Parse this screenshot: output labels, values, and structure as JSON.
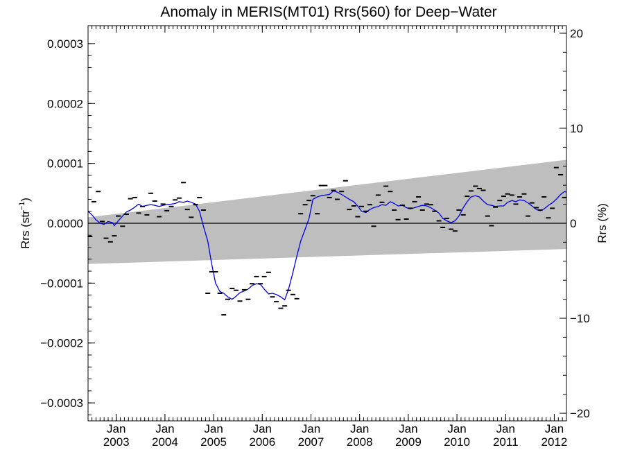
{
  "chart_data": {
    "type": "scatter",
    "title": "Anomaly in MERIS(MT01) Rrs(560) for Deep−Water",
    "ylabel_left_main": "Rrs (str",
    "ylabel_left_sup": "−1",
    "ylabel_left_close": ")",
    "ylabel_right": "Rrs (%)",
    "xlim": [
      2002.42,
      2012.25
    ],
    "ylim": [
      -0.00033,
      0.00033
    ],
    "ylim_right": [
      -20.8,
      20.8
    ],
    "grid": false,
    "left_tick_values": [
      0.0003,
      0.0002,
      0.0001,
      0.0,
      -0.0001,
      -0.0002,
      -0.0003
    ],
    "left_tick_labels": [
      "0.0003",
      "0.0002",
      "0.0001",
      "0.0000",
      "−0.0001",
      "−0.0002",
      "−0.0003"
    ],
    "right_tick_values": [
      20,
      10,
      0,
      -10,
      -20
    ],
    "right_tick_labels": [
      "20",
      "10",
      "0",
      "−10",
      "−20"
    ],
    "x_ticks": [
      {
        "x": 2003.0,
        "month": "Jan",
        "year": "2003"
      },
      {
        "x": 2004.0,
        "month": "Jan",
        "year": "2004"
      },
      {
        "x": 2005.0,
        "month": "Jan",
        "year": "2005"
      },
      {
        "x": 2006.0,
        "month": "Jan",
        "year": "2006"
      },
      {
        "x": 2007.0,
        "month": "Jan",
        "year": "2007"
      },
      {
        "x": 2008.0,
        "month": "Jan",
        "year": "2008"
      },
      {
        "x": 2009.0,
        "month": "Jan",
        "year": "2009"
      },
      {
        "x": 2010.0,
        "month": "Jan",
        "year": "2010"
      },
      {
        "x": 2011.0,
        "month": "Jan",
        "year": "2011"
      },
      {
        "x": 2012.0,
        "month": "Jan",
        "year": "2012"
      }
    ],
    "reference_line": 0.0,
    "uncertainty_band": {
      "x": [
        2002.42,
        2012.25
      ],
      "upper": [
        1e-05,
        0.000106
      ],
      "lower": [
        -6.8e-05,
        -4.3e-05
      ],
      "color": "#bebebe"
    },
    "series": [
      {
        "kind": "monthly-anomaly-markers",
        "color": "#000000",
        "points": [
          [
            2002.46,
            -2.2e-05
          ],
          [
            2002.54,
            3.6e-05
          ],
          [
            2002.63,
            5.3e-05
          ],
          [
            2002.71,
            3e-06
          ],
          [
            2002.79,
            -2.5e-05
          ],
          [
            2002.88,
            -3.1e-05
          ],
          [
            2002.96,
            -2.1e-05
          ],
          [
            2003.04,
            1.2e-05
          ],
          [
            2003.13,
            -5e-06
          ],
          [
            2003.21,
            1.5e-05
          ],
          [
            2003.29,
            4.1e-05
          ],
          [
            2003.38,
            4.3e-05
          ],
          [
            2003.46,
            1.7e-05
          ],
          [
            2003.54,
            2.8e-05
          ],
          [
            2003.63,
            1.4e-05
          ],
          [
            2003.71,
            5e-05
          ],
          [
            2003.79,
            3.7e-05
          ],
          [
            2003.88,
            1.1e-05
          ],
          [
            2003.96,
            3.2e-05
          ],
          [
            2004.04,
            2.1e-05
          ],
          [
            2004.13,
            2.8e-05
          ],
          [
            2004.21,
            3.9e-05
          ],
          [
            2004.29,
            4.2e-05
          ],
          [
            2004.38,
            6.8e-05
          ],
          [
            2004.46,
            2.3e-05
          ],
          [
            2004.54,
            1e-05
          ],
          [
            2004.63,
            3.1e-05
          ],
          [
            2004.71,
            4.3e-05
          ],
          [
            2004.79,
            2.2e-05
          ],
          [
            2004.88,
            -0.000117
          ],
          [
            2004.96,
            -8.1e-05
          ],
          [
            2005.04,
            -8.1e-05
          ],
          [
            2005.13,
            -0.000117
          ],
          [
            2005.21,
            -0.000153
          ],
          [
            2005.29,
            -0.000127
          ],
          [
            2005.38,
            -0.000109
          ],
          [
            2005.46,
            -0.000112
          ],
          [
            2005.54,
            -0.00013
          ],
          [
            2005.63,
            -0.000111
          ],
          [
            2005.71,
            -0.000127
          ],
          [
            2005.79,
            -0.000101
          ],
          [
            2005.88,
            -8.9e-05
          ],
          [
            2005.96,
            -0.000101
          ],
          [
            2006.04,
            -8.9e-05
          ],
          [
            2006.13,
            -8.2e-05
          ],
          [
            2006.21,
            -0.000123
          ],
          [
            2006.29,
            -0.000131
          ],
          [
            2006.38,
            -0.000142
          ],
          [
            2006.46,
            -0.000138
          ],
          [
            2006.54,
            -0.000112
          ],
          [
            2006.63,
            -0.000119
          ],
          [
            2006.71,
            -0.000126
          ],
          [
            2006.79,
            1.6e-05
          ],
          [
            2006.88,
            3.1e-05
          ],
          [
            2006.96,
            3.8e-05
          ],
          [
            2007.04,
            4.6e-05
          ],
          [
            2007.13,
            1.6e-05
          ],
          [
            2007.21,
            6.3e-05
          ],
          [
            2007.29,
            6.3e-05
          ],
          [
            2007.38,
            4.3e-05
          ],
          [
            2007.46,
            5.5e-05
          ],
          [
            2007.54,
            4e-05
          ],
          [
            2007.63,
            5.3e-05
          ],
          [
            2007.71,
            7.1e-05
          ],
          [
            2007.79,
            2.3e-05
          ],
          [
            2007.88,
            2.9e-05
          ],
          [
            2007.96,
            1.1e-05
          ],
          [
            2008.04,
            2.8e-05
          ],
          [
            2008.13,
            2e-05
          ],
          [
            2008.21,
            3.1e-05
          ],
          [
            2008.29,
            -5e-06
          ],
          [
            2008.38,
            4.7e-05
          ],
          [
            2008.46,
            3.5e-05
          ],
          [
            2008.54,
            6.2e-05
          ],
          [
            2008.63,
            5.3e-05
          ],
          [
            2008.71,
            2.2e-05
          ],
          [
            2008.79,
            6e-06
          ],
          [
            2008.88,
            3e-05
          ],
          [
            2008.96,
            7e-06
          ],
          [
            2009.04,
            2.5e-05
          ],
          [
            2009.13,
            3.6e-05
          ],
          [
            2009.21,
            4.4e-05
          ],
          [
            2009.29,
            2.2e-05
          ],
          [
            2009.38,
            3.2e-05
          ],
          [
            2009.46,
            3.1e-05
          ],
          [
            2009.54,
            2e-05
          ],
          [
            2009.63,
            4e-06
          ],
          [
            2009.71,
            -7e-06
          ],
          [
            2009.79,
            8e-06
          ],
          [
            2009.88,
            -1e-05
          ],
          [
            2009.96,
            -1.3e-05
          ],
          [
            2010.04,
            2.2e-05
          ],
          [
            2010.13,
            1.4e-05
          ],
          [
            2010.21,
            4.5e-05
          ],
          [
            2010.29,
            5.4e-05
          ],
          [
            2010.38,
            6.2e-05
          ],
          [
            2010.46,
            5.8e-05
          ],
          [
            2010.54,
            5.5e-05
          ],
          [
            2010.63,
            1.2e-05
          ],
          [
            2010.71,
            -4e-06
          ],
          [
            2010.79,
            2.7e-05
          ],
          [
            2010.88,
            3.8e-05
          ],
          [
            2010.96,
            4.5e-05
          ],
          [
            2011.04,
            4.9e-05
          ],
          [
            2011.13,
            4.7e-05
          ],
          [
            2011.21,
            3.2e-05
          ],
          [
            2011.29,
            4.4e-05
          ],
          [
            2011.38,
            4.9e-05
          ],
          [
            2011.46,
            1.2e-05
          ],
          [
            2011.54,
            3.4e-05
          ],
          [
            2011.63,
            2.6e-05
          ],
          [
            2011.71,
            2.2e-05
          ],
          [
            2011.79,
            4.4e-05
          ],
          [
            2011.88,
            9e-06
          ],
          [
            2011.96,
            2.5e-05
          ],
          [
            2012.04,
            9.3e-05
          ],
          [
            2012.13,
            8.1e-05
          ],
          [
            2012.21,
            4.3e-05
          ]
        ]
      },
      {
        "kind": "smoothed-anomaly",
        "color": "#0000e6",
        "points": [
          [
            2002.42,
            2e-05
          ],
          [
            2002.5,
            1.4e-05
          ],
          [
            2002.58,
            6e-06
          ],
          [
            2002.67,
            0.0
          ],
          [
            2002.75,
            -2e-06
          ],
          [
            2002.83,
            3e-06
          ],
          [
            2002.92,
            1e-06
          ],
          [
            2002.96,
            -4e-06
          ],
          [
            2003.04,
            4e-06
          ],
          [
            2003.13,
            1.2e-05
          ],
          [
            2003.21,
            1.9e-05
          ],
          [
            2003.29,
            2.2e-05
          ],
          [
            2003.38,
            2.7e-05
          ],
          [
            2003.46,
            3.2e-05
          ],
          [
            2003.54,
            2.8e-05
          ],
          [
            2003.63,
            3e-05
          ],
          [
            2003.71,
            3.1e-05
          ],
          [
            2003.79,
            3e-05
          ],
          [
            2003.88,
            2.8e-05
          ],
          [
            2003.96,
            3e-05
          ],
          [
            2004.04,
            3.1e-05
          ],
          [
            2004.13,
            3.2e-05
          ],
          [
            2004.21,
            3.3e-05
          ],
          [
            2004.29,
            3.6e-05
          ],
          [
            2004.38,
            3.5e-05
          ],
          [
            2004.46,
            3.7e-05
          ],
          [
            2004.54,
            3.5e-05
          ],
          [
            2004.63,
            3.2e-05
          ],
          [
            2004.71,
            2e-05
          ],
          [
            2004.79,
            -5e-06
          ],
          [
            2004.88,
            -3e-05
          ],
          [
            2004.96,
            -6.8e-05
          ],
          [
            2005.04,
            -0.0001
          ],
          [
            2005.13,
            -0.000114
          ],
          [
            2005.21,
            -0.000117
          ],
          [
            2005.29,
            -0.000123
          ],
          [
            2005.38,
            -0.000127
          ],
          [
            2005.46,
            -0.000122
          ],
          [
            2005.54,
            -0.000116
          ],
          [
            2005.63,
            -0.000113
          ],
          [
            2005.71,
            -0.00011
          ],
          [
            2005.79,
            -0.000104
          ],
          [
            2005.88,
            -0.000101
          ],
          [
            2005.96,
            -0.000102
          ],
          [
            2006.04,
            -0.00011
          ],
          [
            2006.13,
            -0.000118
          ],
          [
            2006.21,
            -0.000117
          ],
          [
            2006.29,
            -0.000119
          ],
          [
            2006.38,
            -0.000123
          ],
          [
            2006.46,
            -0.000128
          ],
          [
            2006.54,
            -0.00011
          ],
          [
            2006.63,
            -8.2e-05
          ],
          [
            2006.71,
            -5.5e-05
          ],
          [
            2006.79,
            -3e-05
          ],
          [
            2006.88,
            -1e-05
          ],
          [
            2006.96,
            8e-06
          ],
          [
            2007.04,
            4e-05
          ],
          [
            2007.13,
            4.4e-05
          ],
          [
            2007.21,
            4.6e-05
          ],
          [
            2007.29,
            4.7e-05
          ],
          [
            2007.38,
            4.8e-05
          ],
          [
            2007.46,
            5.4e-05
          ],
          [
            2007.54,
            5.2e-05
          ],
          [
            2007.63,
            4.8e-05
          ],
          [
            2007.71,
            4.4e-05
          ],
          [
            2007.79,
            4e-05
          ],
          [
            2007.88,
            3.6e-05
          ],
          [
            2007.96,
            2.9e-05
          ],
          [
            2008.04,
            2e-05
          ],
          [
            2008.13,
            1.8e-05
          ],
          [
            2008.21,
            2.3e-05
          ],
          [
            2008.29,
            2.6e-05
          ],
          [
            2008.38,
            2.8e-05
          ],
          [
            2008.46,
            3.1e-05
          ],
          [
            2008.54,
            3e-05
          ],
          [
            2008.63,
            3.6e-05
          ],
          [
            2008.71,
            3.3e-05
          ],
          [
            2008.79,
            2.9e-05
          ],
          [
            2008.88,
            3e-05
          ],
          [
            2008.96,
            2.6e-05
          ],
          [
            2009.04,
            2.4e-05
          ],
          [
            2009.13,
            2.6e-05
          ],
          [
            2009.21,
            2.8e-05
          ],
          [
            2009.29,
            3e-05
          ],
          [
            2009.38,
            2.9e-05
          ],
          [
            2009.46,
            2.6e-05
          ],
          [
            2009.54,
            2.2e-05
          ],
          [
            2009.63,
            1.7e-05
          ],
          [
            2009.71,
            8e-06
          ],
          [
            2009.79,
            4e-06
          ],
          [
            2009.88,
            1e-06
          ],
          [
            2009.96,
            4e-06
          ],
          [
            2010.04,
            1.2e-05
          ],
          [
            2010.13,
            2.6e-05
          ],
          [
            2010.21,
            3.6e-05
          ],
          [
            2010.29,
            4.4e-05
          ],
          [
            2010.38,
            4.6e-05
          ],
          [
            2010.46,
            4.4e-05
          ],
          [
            2010.54,
            3.7e-05
          ],
          [
            2010.63,
            3.1e-05
          ],
          [
            2010.71,
            3e-05
          ],
          [
            2010.79,
            2.8e-05
          ],
          [
            2010.88,
            2.9e-05
          ],
          [
            2010.96,
            2.9e-05
          ],
          [
            2011.04,
            3.5e-05
          ],
          [
            2011.13,
            3.8e-05
          ],
          [
            2011.21,
            3.6e-05
          ],
          [
            2011.29,
            3.9e-05
          ],
          [
            2011.38,
            3.8e-05
          ],
          [
            2011.46,
            3.4e-05
          ],
          [
            2011.54,
            2.9e-05
          ],
          [
            2011.63,
            2.3e-05
          ],
          [
            2011.71,
            2.1e-05
          ],
          [
            2011.79,
            2.4e-05
          ],
          [
            2011.88,
            3e-05
          ],
          [
            2011.96,
            3.4e-05
          ],
          [
            2012.04,
            4e-05
          ],
          [
            2012.13,
            4.8e-05
          ],
          [
            2012.21,
            5.3e-05
          ],
          [
            2012.25,
            5.2e-05
          ]
        ]
      }
    ]
  }
}
